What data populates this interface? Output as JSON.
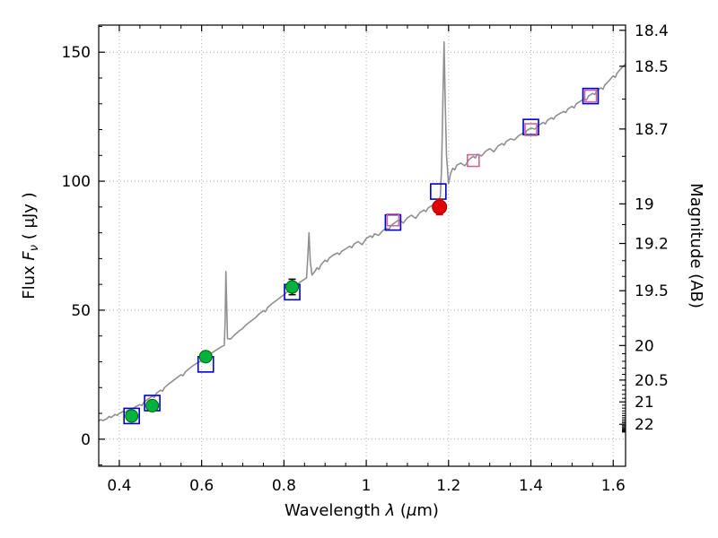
{
  "labels": {
    "xlabel_pre": "Wavelength  ",
    "xlabel_lambda": "λ",
    "xlabel_mid": " (",
    "xlabel_mu": "μ",
    "xlabel_post": "m)",
    "ylabel_pre": "Flux  ",
    "ylabel_f": "F",
    "ylabel_sub": "ν",
    "ylabel_post": "  ( μJy )",
    "right_label": "Magnitude (AB)"
  },
  "chart_data": {
    "type": "line",
    "title": "",
    "xlabel": "Wavelength λ (μm)",
    "ylabel_left": "Flux Fν ( μJy )",
    "ylabel_right": "Magnitude (AB)",
    "grid": "dotted",
    "grid_color": "#b0b0b0",
    "xlim": [
      0.35,
      1.63
    ],
    "ylim_flux": [
      -10.5,
      160.5
    ],
    "x_ticks": [
      0.4,
      0.6,
      0.8,
      1.0,
      1.2,
      1.4,
      1.6
    ],
    "x_tick_labels": [
      "0.4",
      "0.6",
      "0.8",
      "1",
      "1.2",
      "1.4",
      "1.6"
    ],
    "x_minor_step": 0.05,
    "y_ticks_flux": [
      0,
      50,
      100,
      150
    ],
    "y_tick_labels_flux": [
      "0",
      "50",
      "100",
      "150"
    ],
    "y_minor_step": 10,
    "right_ticks_mag": [
      18.4,
      18.5,
      18.7,
      19.0,
      19.2,
      19.5,
      20.0,
      20.5,
      21.0,
      22.0
    ],
    "right_tick_labels": [
      "18.4",
      "18.5",
      "18.7",
      "19",
      "19.2",
      "19.5",
      "20",
      "20.5",
      "21",
      "22"
    ],
    "mag_zeropoint": 23.9,
    "series": {
      "spectrum": {
        "color": "#909090",
        "linewidth": 1.6,
        "points": [
          [
            0.35,
            7.0
          ],
          [
            0.355,
            7.6
          ],
          [
            0.36,
            7.2
          ],
          [
            0.37,
            8.0
          ],
          [
            0.375,
            8.8
          ],
          [
            0.38,
            8.4
          ],
          [
            0.39,
            9.6
          ],
          [
            0.395,
            9.2
          ],
          [
            0.4,
            10.0
          ],
          [
            0.41,
            10.8
          ],
          [
            0.415,
            10.4
          ],
          [
            0.42,
            11.2
          ],
          [
            0.43,
            11.6
          ],
          [
            0.44,
            12.6
          ],
          [
            0.45,
            13.4
          ],
          [
            0.455,
            13.0
          ],
          [
            0.46,
            14.4
          ],
          [
            0.47,
            15.6
          ],
          [
            0.48,
            16.6
          ],
          [
            0.485,
            16.2
          ],
          [
            0.49,
            17.8
          ],
          [
            0.5,
            19.0
          ],
          [
            0.505,
            18.6
          ],
          [
            0.51,
            20.0
          ],
          [
            0.52,
            21.4
          ],
          [
            0.53,
            22.6
          ],
          [
            0.54,
            23.8
          ],
          [
            0.55,
            25.0
          ],
          [
            0.555,
            24.6
          ],
          [
            0.56,
            26.0
          ],
          [
            0.57,
            27.4
          ],
          [
            0.58,
            28.6
          ],
          [
            0.59,
            29.6
          ],
          [
            0.6,
            30.4
          ],
          [
            0.61,
            31.6
          ],
          [
            0.62,
            32.8
          ],
          [
            0.63,
            34.0
          ],
          [
            0.64,
            35.0
          ],
          [
            0.65,
            36.0
          ],
          [
            0.655,
            36.4
          ],
          [
            0.657,
            45.0
          ],
          [
            0.659,
            65.0
          ],
          [
            0.661,
            52.0
          ],
          [
            0.663,
            39.0
          ],
          [
            0.67,
            38.8
          ],
          [
            0.68,
            40.4
          ],
          [
            0.69,
            41.8
          ],
          [
            0.7,
            43.0
          ],
          [
            0.71,
            44.6
          ],
          [
            0.72,
            45.8
          ],
          [
            0.73,
            47.0
          ],
          [
            0.74,
            48.6
          ],
          [
            0.75,
            49.8
          ],
          [
            0.755,
            49.4
          ],
          [
            0.76,
            51.0
          ],
          [
            0.77,
            52.4
          ],
          [
            0.78,
            53.6
          ],
          [
            0.79,
            54.8
          ],
          [
            0.8,
            56.0
          ],
          [
            0.81,
            57.4
          ],
          [
            0.82,
            58.6
          ],
          [
            0.83,
            59.8
          ],
          [
            0.84,
            61.0
          ],
          [
            0.85,
            62.0
          ],
          [
            0.855,
            62.6
          ],
          [
            0.858,
            71.0
          ],
          [
            0.861,
            80.0
          ],
          [
            0.864,
            69.0
          ],
          [
            0.868,
            63.6
          ],
          [
            0.875,
            65.0
          ],
          [
            0.88,
            66.4
          ],
          [
            0.885,
            65.8
          ],
          [
            0.89,
            67.6
          ],
          [
            0.9,
            69.4
          ],
          [
            0.905,
            68.8
          ],
          [
            0.91,
            70.2
          ],
          [
            0.92,
            71.4
          ],
          [
            0.93,
            72.2
          ],
          [
            0.935,
            71.6
          ],
          [
            0.94,
            72.8
          ],
          [
            0.95,
            73.8
          ],
          [
            0.96,
            74.8
          ],
          [
            0.965,
            74.2
          ],
          [
            0.97,
            75.6
          ],
          [
            0.98,
            76.6
          ],
          [
            0.985,
            76.0
          ],
          [
            0.99,
            75.4
          ],
          [
            1.0,
            77.8
          ],
          [
            1.01,
            78.8
          ],
          [
            1.015,
            78.2
          ],
          [
            1.02,
            79.6
          ],
          [
            1.03,
            79.0
          ],
          [
            1.04,
            80.8
          ],
          [
            1.05,
            81.8
          ],
          [
            1.055,
            81.2
          ],
          [
            1.06,
            82.8
          ],
          [
            1.07,
            84.0
          ],
          [
            1.08,
            85.0
          ],
          [
            1.085,
            84.4
          ],
          [
            1.09,
            83.8
          ],
          [
            1.1,
            85.8
          ],
          [
            1.11,
            86.8
          ],
          [
            1.115,
            86.2
          ],
          [
            1.12,
            85.6
          ],
          [
            1.13,
            87.8
          ],
          [
            1.14,
            88.8
          ],
          [
            1.145,
            88.2
          ],
          [
            1.15,
            89.6
          ],
          [
            1.16,
            90.6
          ],
          [
            1.165,
            90.0
          ],
          [
            1.17,
            91.6
          ],
          [
            1.175,
            92.6
          ],
          [
            1.18,
            94.0
          ],
          [
            1.183,
            105.0
          ],
          [
            1.186,
            130.0
          ],
          [
            1.189,
            154.0
          ],
          [
            1.192,
            130.0
          ],
          [
            1.195,
            110.0
          ],
          [
            1.2,
            99.0
          ],
          [
            1.205,
            103.0
          ],
          [
            1.21,
            105.0
          ],
          [
            1.215,
            104.4
          ],
          [
            1.22,
            106.2
          ],
          [
            1.23,
            107.0
          ],
          [
            1.235,
            106.4
          ],
          [
            1.24,
            106.0
          ],
          [
            1.25,
            108.4
          ],
          [
            1.26,
            109.6
          ],
          [
            1.265,
            109.0
          ],
          [
            1.27,
            110.4
          ],
          [
            1.28,
            109.8
          ],
          [
            1.29,
            111.6
          ],
          [
            1.3,
            112.6
          ],
          [
            1.305,
            112.0
          ],
          [
            1.31,
            111.4
          ],
          [
            1.32,
            113.6
          ],
          [
            1.33,
            114.6
          ],
          [
            1.335,
            114.0
          ],
          [
            1.34,
            115.4
          ],
          [
            1.35,
            116.4
          ],
          [
            1.36,
            116.0
          ],
          [
            1.37,
            117.6
          ],
          [
            1.38,
            118.6
          ],
          [
            1.385,
            118.0
          ],
          [
            1.39,
            119.6
          ],
          [
            1.4,
            120.6
          ],
          [
            1.41,
            120.2
          ],
          [
            1.42,
            121.8
          ],
          [
            1.43,
            122.8
          ],
          [
            1.435,
            122.2
          ],
          [
            1.44,
            123.6
          ],
          [
            1.45,
            124.6
          ],
          [
            1.455,
            124.0
          ],
          [
            1.46,
            125.2
          ],
          [
            1.47,
            126.2
          ],
          [
            1.48,
            127.0
          ],
          [
            1.485,
            126.6
          ],
          [
            1.49,
            128.0
          ],
          [
            1.5,
            129.0
          ],
          [
            1.505,
            128.4
          ],
          [
            1.51,
            130.0
          ],
          [
            1.52,
            131.0
          ],
          [
            1.53,
            132.0
          ],
          [
            1.535,
            131.4
          ],
          [
            1.54,
            133.0
          ],
          [
            1.55,
            134.0
          ],
          [
            1.555,
            133.6
          ],
          [
            1.56,
            135.0
          ],
          [
            1.57,
            136.2
          ],
          [
            1.575,
            135.6
          ],
          [
            1.58,
            137.4
          ],
          [
            1.59,
            139.0
          ],
          [
            1.6,
            140.8
          ],
          [
            1.605,
            140.2
          ],
          [
            1.61,
            142.0
          ],
          [
            1.62,
            143.8
          ],
          [
            1.63,
            145.5
          ]
        ]
      },
      "observed_green_circles": {
        "fill": "#00b33c",
        "edge": "#006600",
        "errorbar_color": "#000000",
        "points": [
          [
            0.43,
            9,
            1.5
          ],
          [
            0.48,
            13,
            1.5
          ],
          [
            0.61,
            32,
            2
          ],
          [
            0.82,
            59,
            3
          ]
        ]
      },
      "observed_red_circle": {
        "fill": "#e00000",
        "edge": "#990000",
        "errorbar_color": "#e00000",
        "points": [
          [
            1.178,
            90,
            3
          ]
        ]
      },
      "model_blue_squares": {
        "edge": "#0000cc",
        "size": 17,
        "points": [
          [
            0.43,
            9
          ],
          [
            0.48,
            14
          ],
          [
            0.61,
            29
          ],
          [
            0.82,
            57
          ],
          [
            1.065,
            84
          ],
          [
            1.175,
            96
          ],
          [
            1.4,
            121
          ],
          [
            1.545,
            133
          ]
        ]
      },
      "model_magenta_squares": {
        "edge": "#cc6699",
        "size": 13,
        "points": [
          [
            1.065,
            85
          ],
          [
            1.26,
            108
          ],
          [
            1.4,
            120
          ],
          [
            1.545,
            133
          ]
        ]
      }
    }
  }
}
